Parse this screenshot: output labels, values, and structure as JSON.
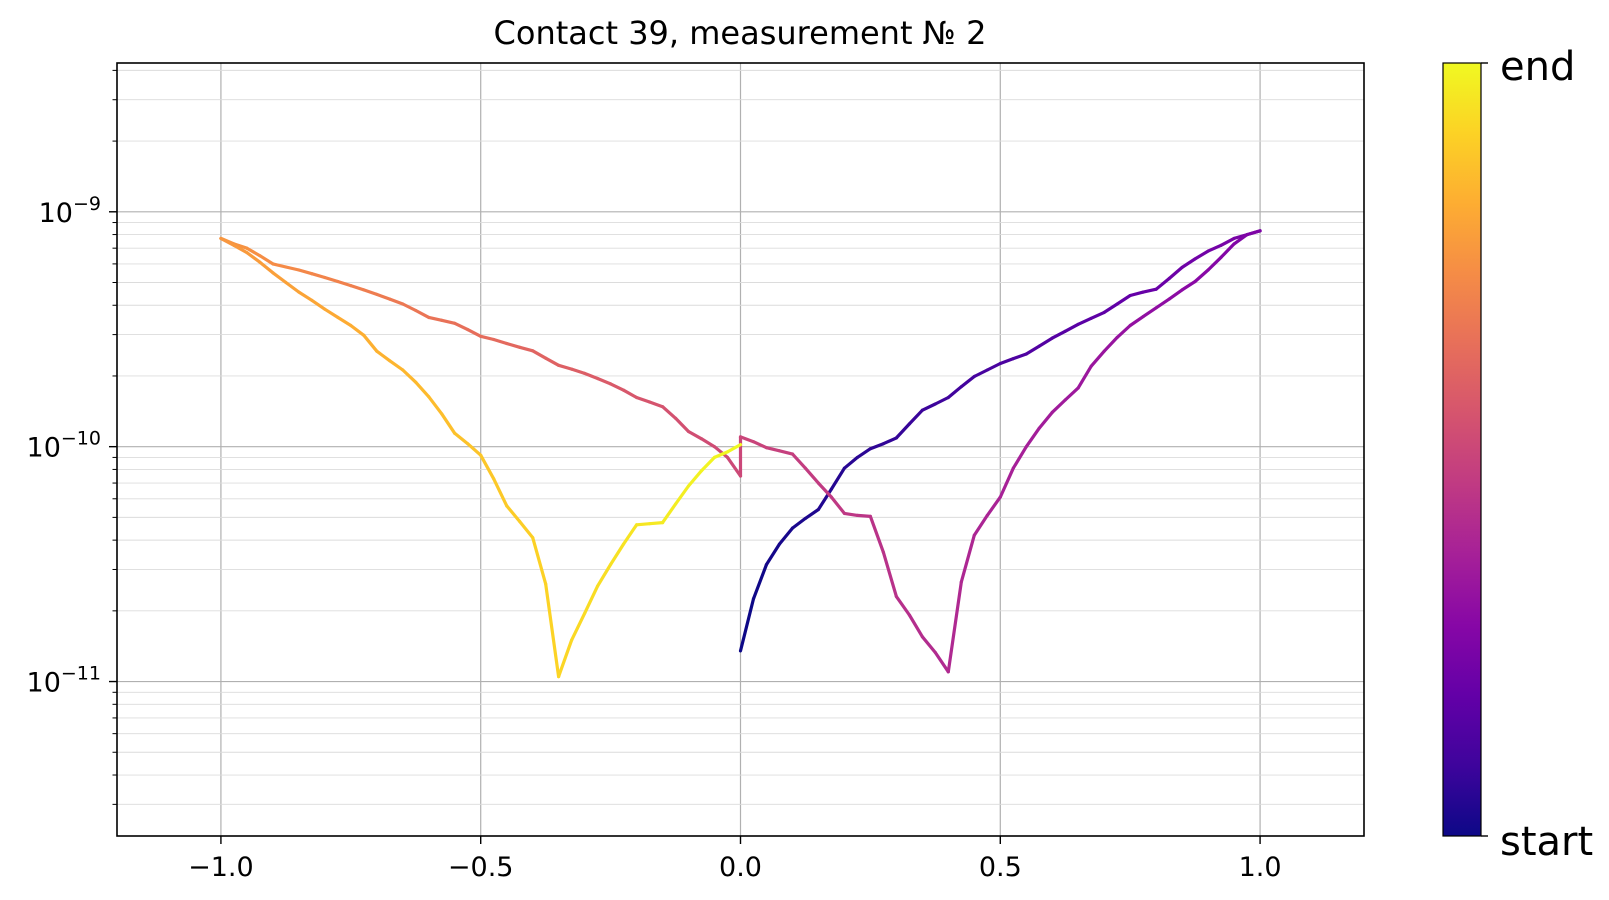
{
  "chart_data": {
    "type": "line",
    "title": "Contact 39, measurement № 2",
    "xlabel": "",
    "ylabel": "",
    "xlim": [
      -1.2,
      1.2
    ],
    "ylim": [
      2.2e-12,
      4.3e-09
    ],
    "yscale": "log",
    "grid": true,
    "x_ticks": [
      "−1.0",
      "−0.5",
      "0.0",
      "0.5",
      "1.0"
    ],
    "y_ticks": [
      {
        "base": "10",
        "exp": "−9"
      },
      {
        "base": "10",
        "exp": "−10"
      },
      {
        "base": "10",
        "exp": "−11"
      }
    ],
    "colormap": "plasma",
    "colorbar": {
      "min_label": "start",
      "max_label": "end"
    },
    "sweep_points": [
      [
        0.0,
        1.35e-11
      ],
      [
        0.025,
        2.25e-11
      ],
      [
        0.05,
        3.15e-11
      ],
      [
        0.075,
        3.85e-11
      ],
      [
        0.1,
        4.5e-11
      ],
      [
        0.125,
        4.95e-11
      ],
      [
        0.15,
        5.4e-11
      ],
      [
        0.175,
        6.6e-11
      ],
      [
        0.2,
        8.1e-11
      ],
      [
        0.225,
        9e-11
      ],
      [
        0.25,
        9.8e-11
      ],
      [
        0.275,
        1.03e-10
      ],
      [
        0.3,
        1.09e-10
      ],
      [
        0.325,
        1.25e-10
      ],
      [
        0.35,
        1.43e-10
      ],
      [
        0.375,
        1.52e-10
      ],
      [
        0.4,
        1.62e-10
      ],
      [
        0.425,
        1.8e-10
      ],
      [
        0.45,
        1.99e-10
      ],
      [
        0.475,
        2.12e-10
      ],
      [
        0.5,
        2.26e-10
      ],
      [
        0.525,
        2.37e-10
      ],
      [
        0.55,
        2.48e-10
      ],
      [
        0.575,
        2.68e-10
      ],
      [
        0.6,
        2.9e-10
      ],
      [
        0.625,
        3.1e-10
      ],
      [
        0.65,
        3.32e-10
      ],
      [
        0.675,
        3.52e-10
      ],
      [
        0.7,
        3.73e-10
      ],
      [
        0.725,
        4.05e-10
      ],
      [
        0.75,
        4.4e-10
      ],
      [
        0.775,
        4.55e-10
      ],
      [
        0.8,
        4.68e-10
      ],
      [
        0.825,
        5.2e-10
      ],
      [
        0.85,
        5.8e-10
      ],
      [
        0.875,
        6.3e-10
      ],
      [
        0.9,
        6.8e-10
      ],
      [
        0.925,
        7.2e-10
      ],
      [
        0.95,
        7.7e-10
      ],
      [
        0.975,
        8e-10
      ],
      [
        1.0,
        8.3e-10
      ],
      [
        0.975,
        8e-10
      ],
      [
        0.95,
        7.3e-10
      ],
      [
        0.925,
        6.4e-10
      ],
      [
        0.9,
        5.65e-10
      ],
      [
        0.875,
        5.05e-10
      ],
      [
        0.85,
        4.65e-10
      ],
      [
        0.825,
        4.25e-10
      ],
      [
        0.8,
        3.9e-10
      ],
      [
        0.775,
        3.58e-10
      ],
      [
        0.75,
        3.28e-10
      ],
      [
        0.725,
        2.92e-10
      ],
      [
        0.7,
        2.55e-10
      ],
      [
        0.675,
        2.2e-10
      ],
      [
        0.65,
        1.78e-10
      ],
      [
        0.625,
        1.58e-10
      ],
      [
        0.6,
        1.4e-10
      ],
      [
        0.575,
        1.2e-10
      ],
      [
        0.55,
        1e-10
      ],
      [
        0.525,
        8.1e-11
      ],
      [
        0.5,
        6.1e-11
      ],
      [
        0.475,
        5.1e-11
      ],
      [
        0.45,
        4.2e-11
      ],
      [
        0.425,
        2.65e-11
      ],
      [
        0.4,
        1.1e-11
      ],
      [
        0.375,
        1.33e-11
      ],
      [
        0.35,
        1.55e-11
      ],
      [
        0.325,
        1.92e-11
      ],
      [
        0.3,
        2.3e-11
      ],
      [
        0.275,
        3.55e-11
      ],
      [
        0.25,
        5.05e-11
      ],
      [
        0.225,
        5.1e-11
      ],
      [
        0.2,
        5.2e-11
      ],
      [
        0.175,
        6.1e-11
      ],
      [
        0.15,
        7e-11
      ],
      [
        0.125,
        8.1e-11
      ],
      [
        0.1,
        9.3e-11
      ],
      [
        0.075,
        9.6e-11
      ],
      [
        0.05,
        9.9e-11
      ],
      [
        0.025,
        1.05e-10
      ],
      [
        0.0,
        1.1e-10
      ],
      [
        0.0,
        7.5e-11
      ],
      [
        -0.025,
        9e-11
      ],
      [
        -0.05,
        1e-10
      ],
      [
        -0.075,
        1.08e-10
      ],
      [
        -0.1,
        1.16e-10
      ],
      [
        -0.125,
        1.32e-10
      ],
      [
        -0.15,
        1.48e-10
      ],
      [
        -0.175,
        1.55e-10
      ],
      [
        -0.2,
        1.62e-10
      ],
      [
        -0.225,
        1.74e-10
      ],
      [
        -0.25,
        1.85e-10
      ],
      [
        -0.275,
        1.95e-10
      ],
      [
        -0.3,
        2.05e-10
      ],
      [
        -0.325,
        2.14e-10
      ],
      [
        -0.35,
        2.22e-10
      ],
      [
        -0.375,
        2.38e-10
      ],
      [
        -0.4,
        2.56e-10
      ],
      [
        -0.425,
        2.65e-10
      ],
      [
        -0.45,
        2.75e-10
      ],
      [
        -0.475,
        2.86e-10
      ],
      [
        -0.5,
        2.95e-10
      ],
      [
        -0.525,
        3.15e-10
      ],
      [
        -0.55,
        3.35e-10
      ],
      [
        -0.575,
        3.45e-10
      ],
      [
        -0.6,
        3.55e-10
      ],
      [
        -0.625,
        3.8e-10
      ],
      [
        -0.65,
        4.05e-10
      ],
      [
        -0.675,
        4.25e-10
      ],
      [
        -0.7,
        4.45e-10
      ],
      [
        -0.725,
        4.65e-10
      ],
      [
        -0.75,
        4.85e-10
      ],
      [
        -0.775,
        5.05e-10
      ],
      [
        -0.8,
        5.25e-10
      ],
      [
        -0.825,
        5.45e-10
      ],
      [
        -0.85,
        5.65e-10
      ],
      [
        -0.875,
        5.82e-10
      ],
      [
        -0.9,
        6e-10
      ],
      [
        -0.925,
        6.5e-10
      ],
      [
        -0.95,
        7e-10
      ],
      [
        -0.975,
        7.3e-10
      ],
      [
        -1.0,
        7.7e-10
      ],
      [
        -0.975,
        7.2e-10
      ],
      [
        -0.95,
        6.7e-10
      ],
      [
        -0.925,
        6.1e-10
      ],
      [
        -0.9,
        5.5e-10
      ],
      [
        -0.875,
        5e-10
      ],
      [
        -0.85,
        4.55e-10
      ],
      [
        -0.825,
        4.2e-10
      ],
      [
        -0.8,
        3.85e-10
      ],
      [
        -0.775,
        3.55e-10
      ],
      [
        -0.75,
        3.28e-10
      ],
      [
        -0.725,
        2.98e-10
      ],
      [
        -0.7,
        2.55e-10
      ],
      [
        -0.675,
        2.32e-10
      ],
      [
        -0.65,
        2.12e-10
      ],
      [
        -0.625,
        1.88e-10
      ],
      [
        -0.6,
        1.63e-10
      ],
      [
        -0.575,
        1.38e-10
      ],
      [
        -0.55,
        1.14e-10
      ],
      [
        -0.525,
        1.03e-10
      ],
      [
        -0.5,
        9.2e-11
      ],
      [
        -0.475,
        7.3e-11
      ],
      [
        -0.45,
        5.6e-11
      ],
      [
        -0.425,
        4.8e-11
      ],
      [
        -0.4,
        4.1e-11
      ],
      [
        -0.375,
        2.6e-11
      ],
      [
        -0.35,
        1.05e-11
      ],
      [
        -0.325,
        1.5e-11
      ],
      [
        -0.3,
        1.95e-11
      ],
      [
        -0.275,
        2.55e-11
      ],
      [
        -0.25,
        3.15e-11
      ],
      [
        -0.225,
        3.85e-11
      ],
      [
        -0.2,
        4.65e-11
      ],
      [
        -0.175,
        4.7e-11
      ],
      [
        -0.15,
        4.75e-11
      ],
      [
        -0.125,
        5.7e-11
      ],
      [
        -0.1,
        6.8e-11
      ],
      [
        -0.075,
        7.9e-11
      ],
      [
        -0.05,
        9e-11
      ],
      [
        -0.025,
        9.5e-11
      ],
      [
        0.0,
        1.02e-10
      ]
    ]
  }
}
